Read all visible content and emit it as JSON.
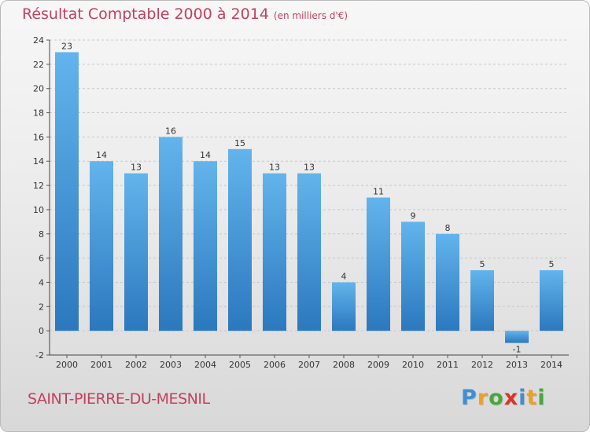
{
  "title": "Résultat Comptable 2000 à 2014",
  "unit_note": "(en milliers d'€)",
  "commune": "SAINT-PIERRE-DU-MESNIL",
  "brand": {
    "letters": [
      "P",
      "r",
      "o",
      "x",
      "i",
      "t",
      "i"
    ],
    "colors": [
      "#3f8fd2",
      "#f0a020",
      "#48a83c",
      "#d8352a",
      "#3f8fd2",
      "#f0a020",
      "#48a83c"
    ]
  },
  "colors": {
    "bar_top": "#63b4ec",
    "bar_bottom": "#2b78be",
    "title": "#c0415e"
  },
  "chart_data": {
    "type": "bar",
    "categories": [
      "2000",
      "2001",
      "2002",
      "2003",
      "2004",
      "2005",
      "2006",
      "2007",
      "2008",
      "2009",
      "2010",
      "2011",
      "2012",
      "2013",
      "2014"
    ],
    "values": [
      23,
      14,
      13,
      16,
      14,
      15,
      13,
      13,
      4,
      11,
      9,
      8,
      5,
      -1,
      5
    ],
    "data_labels": [
      "23",
      "14",
      "13",
      "16",
      "14",
      "15",
      "13",
      "13",
      "4",
      "11",
      "9",
      "8",
      "5",
      "-1",
      "5"
    ],
    "ylim": [
      -2,
      24
    ],
    "yticks": [
      -2,
      0,
      2,
      4,
      6,
      8,
      10,
      12,
      14,
      16,
      18,
      20,
      22,
      24
    ],
    "grid": "horizontal dashed",
    "xlabel": "",
    "ylabel": ""
  }
}
